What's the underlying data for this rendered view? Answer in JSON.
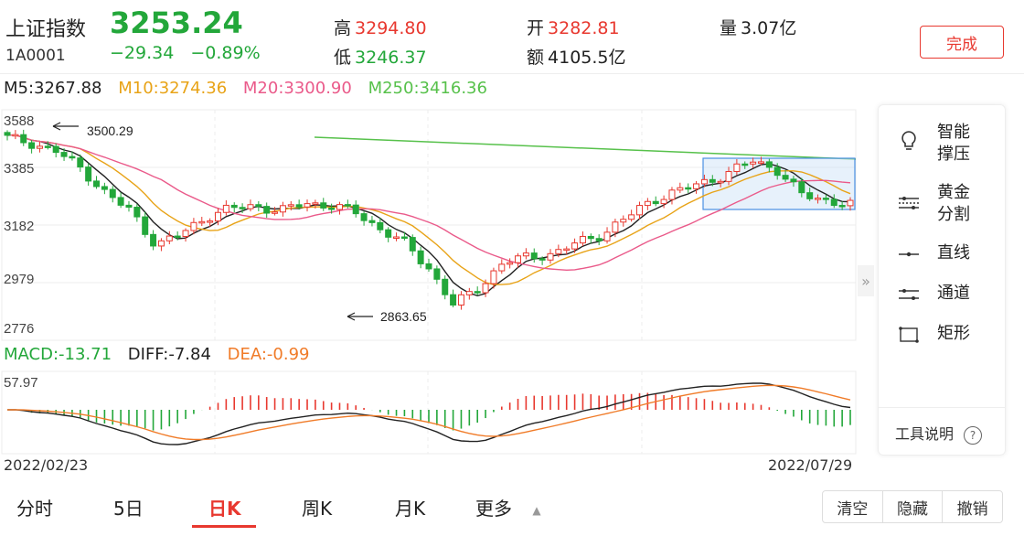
{
  "header": {
    "name": "上证指数",
    "code": "1A0001",
    "price": "3253.24",
    "change": "−29.34",
    "change_pct": "−0.89%",
    "high_label": "高",
    "high": "3294.80",
    "low_label": "低",
    "low": "3246.37",
    "open_label": "开",
    "open": "3282.81",
    "amount_label": "额",
    "amount": "4105.5亿",
    "volume_label": "量",
    "volume": "3.07亿",
    "done_button": "完成"
  },
  "ma": {
    "m5": "M5:3267.88",
    "m10": "M10:3274.36",
    "m20": "M20:3300.90",
    "m250": "M250:3416.36"
  },
  "price_axis": [
    "3588",
    "3385",
    "3182",
    "2979",
    "2776"
  ],
  "annotations": {
    "high": "3500.29",
    "low": "2863.65"
  },
  "macd": {
    "macd": "MACD:-13.71",
    "diff": "DIFF:-7.84",
    "dea": "DEA:-0.99",
    "max": "57.97"
  },
  "dates": {
    "start": "2022/02/23",
    "end": "2022/07/29"
  },
  "tabs": [
    "分时",
    "5日",
    "日K",
    "周K",
    "月K",
    "更多"
  ],
  "active_tab": "日K",
  "actions": [
    "清空",
    "隐藏",
    "撤销"
  ],
  "tools": [
    {
      "label": "智能\n撑压",
      "icon": "bulb-icon"
    },
    {
      "label": "黄金\n分割",
      "icon": "golden-split-icon"
    },
    {
      "label": "直线",
      "icon": "line-icon"
    },
    {
      "label": "通道",
      "icon": "channel-icon"
    },
    {
      "label": "矩形",
      "icon": "rectangle-icon"
    }
  ],
  "tool_help": "工具说明",
  "colors": {
    "up": "#e8382f",
    "down": "#23a73a",
    "m5": "#222222",
    "m10": "#e8a317",
    "m20": "#ea5a8a",
    "m250": "#57c14b"
  },
  "chart_data": {
    "type": "candlestick",
    "y_range": [
      2776,
      3588
    ],
    "approx_closes": [
      3490,
      3470,
      3440,
      3380,
      3290,
      3230,
      3110,
      3150,
      3210,
      3240,
      3250,
      3230,
      3260,
      3250,
      3230,
      3170,
      3120,
      3030,
      2900,
      2960,
      3050,
      3070,
      3080,
      3120,
      3150,
      3210,
      3270,
      3300,
      3330,
      3360,
      3410,
      3380,
      3290,
      3270,
      3253.24
    ]
  }
}
